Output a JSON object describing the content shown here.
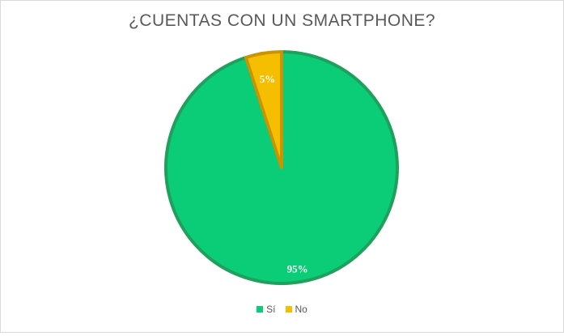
{
  "chart_data": {
    "type": "pie",
    "title": "¿CUENTAS CON UN SMARTPHONE?",
    "slices": [
      {
        "label": "Sí",
        "value": 95,
        "data_label": "95%",
        "color": "#0ccd77",
        "border": "#1fa05d"
      },
      {
        "label": "No",
        "value": 5,
        "data_label": "5%",
        "color": "#f5be00",
        "border": "#c89400"
      }
    ],
    "legend_position": "bottom"
  }
}
